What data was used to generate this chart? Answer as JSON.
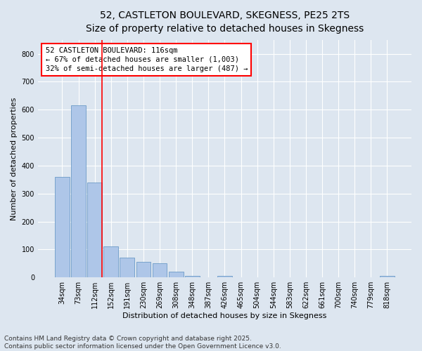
{
  "title_line1": "52, CASTLETON BOULEVARD, SKEGNESS, PE25 2TS",
  "title_line2": "Size of property relative to detached houses in Skegness",
  "xlabel": "Distribution of detached houses by size in Skegness",
  "ylabel": "Number of detached properties",
  "categories": [
    "34sqm",
    "73sqm",
    "112sqm",
    "152sqm",
    "191sqm",
    "230sqm",
    "269sqm",
    "308sqm",
    "348sqm",
    "387sqm",
    "426sqm",
    "465sqm",
    "504sqm",
    "544sqm",
    "583sqm",
    "622sqm",
    "661sqm",
    "700sqm",
    "740sqm",
    "779sqm",
    "818sqm"
  ],
  "values": [
    360,
    615,
    340,
    110,
    70,
    55,
    50,
    20,
    5,
    0,
    5,
    0,
    0,
    0,
    0,
    0,
    0,
    0,
    0,
    0,
    5
  ],
  "bar_color": "#aec6e8",
  "bar_edge_color": "#5a8fc0",
  "vline_color": "red",
  "annotation_text": "52 CASTLETON BOULEVARD: 116sqm\n← 67% of detached houses are smaller (1,003)\n32% of semi-detached houses are larger (487) →",
  "annotation_box_color": "white",
  "annotation_box_edge_color": "red",
  "ylim": [
    0,
    850
  ],
  "yticks": [
    0,
    100,
    200,
    300,
    400,
    500,
    600,
    700,
    800
  ],
  "footnote": "Contains HM Land Registry data © Crown copyright and database right 2025.\nContains public sector information licensed under the Open Government Licence v3.0.",
  "background_color": "#dde6f0",
  "plot_bg_color": "#dde6f0",
  "title_fontsize": 10,
  "subtitle_fontsize": 9,
  "axis_label_fontsize": 8,
  "tick_fontsize": 7,
  "annotation_fontsize": 7.5,
  "footnote_fontsize": 6.5
}
